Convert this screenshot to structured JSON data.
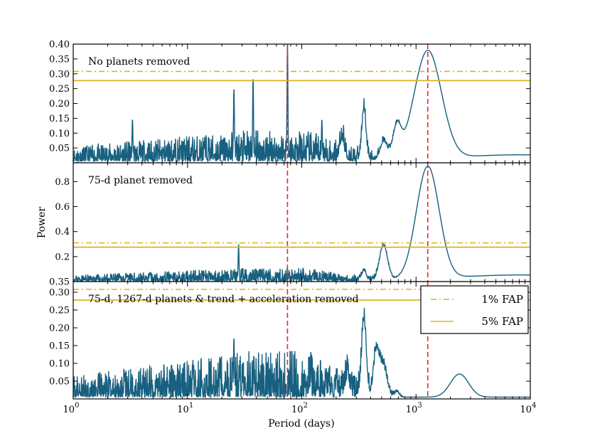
{
  "chart_data": {
    "type": "line",
    "x_axis": {
      "label": "Period (days)",
      "scale": "log",
      "range": [
        1,
        10000
      ],
      "ticks": [
        {
          "value": 1,
          "base": "10",
          "exp": "0"
        },
        {
          "value": 10,
          "base": "10",
          "exp": "1"
        },
        {
          "value": 100,
          "base": "10",
          "exp": "2"
        },
        {
          "value": 1000,
          "base": "10",
          "exp": "3"
        },
        {
          "value": 10000,
          "base": "10",
          "exp": "4"
        }
      ]
    },
    "y_axis_label": "Power",
    "colors": {
      "series": "#17607f",
      "vline": "#e8282b",
      "fap": "#d9b324"
    },
    "vlines": [
      75,
      1267
    ],
    "legend": {
      "position": "top-right",
      "entries": [
        {
          "label": "1% FAP",
          "style": "dashdot"
        },
        {
          "label": "5% FAP",
          "style": "solid"
        }
      ]
    },
    "panels": [
      {
        "title": "No planets removed",
        "ylim": [
          0,
          0.4
        ],
        "yticks": [
          0.05,
          0.1,
          0.15,
          0.2,
          0.25,
          0.3,
          0.35,
          0.4
        ],
        "ytick_labels": [
          "0.05",
          "0.10",
          "0.15",
          "0.20",
          "0.25",
          "0.30",
          "0.35",
          "0.40"
        ],
        "fap_1": 0.308,
        "fap_5": 0.277,
        "peaks": [
          {
            "period": 3.3,
            "power": 0.15
          },
          {
            "period": 25.5,
            "power": 0.255
          },
          {
            "period": 37.5,
            "power": 0.29
          },
          {
            "period": 75,
            "power": 0.4
          },
          {
            "period": 150,
            "power": 0.15
          },
          {
            "period": 350,
            "power": 0.175
          },
          {
            "period": 520,
            "power": 0.06
          },
          {
            "period": 680,
            "power": 0.1
          },
          {
            "period": 1267,
            "power": 0.365
          }
        ],
        "noise_amp": 0.05,
        "base": 0.005,
        "seed": 11,
        "smooth": [
          {
            "center": 1267,
            "width": 0.12,
            "amp": 0.365
          },
          {
            "center": 680,
            "width": 0.035,
            "amp": 0.1
          },
          {
            "center": 520,
            "width": 0.03,
            "amp": 0.06
          },
          {
            "center": 350,
            "width": 0.018,
            "amp": 0.175
          },
          {
            "center": 225,
            "width": 0.02,
            "amp": 0.07
          },
          {
            "center": 8000,
            "width": 0.6,
            "amp": 0.022
          }
        ]
      },
      {
        "title": "75-d planet removed",
        "ylim": [
          0,
          0.95
        ],
        "yticks": [
          0.2,
          0.4,
          0.6,
          0.8
        ],
        "ytick_labels": [
          "0.2",
          "0.4",
          "0.6",
          "0.8"
        ],
        "extra_bottom_label": "0.35",
        "fap_1": 0.31,
        "fap_5": 0.275,
        "peaks": [
          {
            "period": 28,
            "power": 0.3
          },
          {
            "period": 520,
            "power": 0.28
          },
          {
            "period": 1267,
            "power": 0.9
          }
        ],
        "noise_amp": 0.05,
        "base": 0.003,
        "seed": 23,
        "smooth": [
          {
            "center": 1267,
            "width": 0.1,
            "amp": 0.9
          },
          {
            "center": 520,
            "width": 0.035,
            "amp": 0.28
          },
          {
            "center": 350,
            "width": 0.02,
            "amp": 0.08
          },
          {
            "center": 8000,
            "width": 0.6,
            "amp": 0.05
          }
        ]
      },
      {
        "title": "75-d, 1267-d planets & trend + acceleration removed",
        "ylim": [
          0,
          0.33
        ],
        "yticks": [
          0.05,
          0.1,
          0.15,
          0.2,
          0.25,
          0.3
        ],
        "ytick_labels": [
          "0.05",
          "0.10",
          "0.15",
          "0.20",
          "0.25",
          "0.30"
        ],
        "fap_1": 0.308,
        "fap_5": 0.278,
        "peaks": [
          {
            "period": 25.5,
            "power": 0.175
          },
          {
            "period": 120,
            "power": 0.135
          },
          {
            "period": 350,
            "power": 0.22
          },
          {
            "period": 450,
            "power": 0.125
          },
          {
            "period": 2400,
            "power": 0.065
          }
        ],
        "noise_amp": 0.06,
        "base": 0.005,
        "seed": 37,
        "smooth": [
          {
            "center": 350,
            "width": 0.02,
            "amp": 0.22
          },
          {
            "center": 450,
            "width": 0.025,
            "amp": 0.125
          },
          {
            "center": 520,
            "width": 0.03,
            "amp": 0.08
          },
          {
            "center": 250,
            "width": 0.02,
            "amp": 0.05
          },
          {
            "center": 2400,
            "width": 0.08,
            "amp": 0.065
          },
          {
            "center": 680,
            "width": 0.02,
            "amp": 0.015
          }
        ]
      }
    ]
  }
}
